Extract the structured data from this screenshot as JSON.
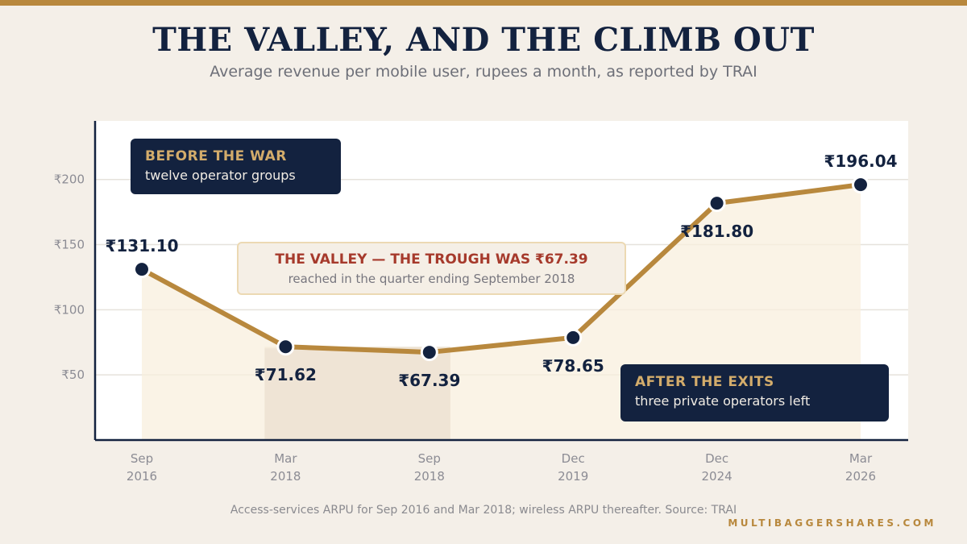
{
  "title": "THE VALLEY, AND THE CLIMB OUT",
  "subtitle": "Average revenue per mobile user, rupees a month, as reported by TRAI",
  "footnote": "Access-services ARPU for Sep 2016 and Mar 2018; wireless ARPU thereafter. Source: TRAI",
  "brand": "MULTIBAGGERSHARES.COM",
  "annotations": {
    "before": {
      "heading": "BEFORE THE WAR",
      "text": "twelve operator groups"
    },
    "valley": {
      "heading": "THE VALLEY — THE TROUGH WAS ₹67.39",
      "text": "reached in the quarter ending September 2018"
    },
    "after": {
      "heading": "AFTER THE EXITS",
      "text": "three private operators left"
    }
  },
  "colors": {
    "line": "#b8883d",
    "point": "#13223f",
    "area": "#f8efde",
    "valley_band": "#ede3d3",
    "background": "#f4efe8",
    "plot_background": "#ffffff"
  },
  "chart_data": {
    "type": "line",
    "categories": [
      [
        "Sep",
        "2016"
      ],
      [
        "Mar",
        "2018"
      ],
      [
        "Sep",
        "2018"
      ],
      [
        "Dec",
        "2019"
      ],
      [
        "Dec",
        "2024"
      ],
      [
        "Mar",
        "2026"
      ]
    ],
    "values": [
      131.1,
      71.62,
      67.39,
      78.65,
      181.8,
      196.04
    ],
    "data_labels": [
      "₹131.10",
      "₹71.62",
      "₹67.39",
      "₹78.65",
      "₹181.80",
      "₹196.04"
    ],
    "label_position": [
      "above",
      "below",
      "below",
      "below",
      "below",
      "above"
    ],
    "y_ticks": [
      50,
      100,
      150,
      200
    ],
    "y_tick_labels": [
      "₹50",
      "₹100",
      "₹150",
      "₹200"
    ],
    "ylim": [
      0,
      245
    ],
    "grid": true,
    "area_fill": true,
    "highlight_band": {
      "from_category": 1,
      "to_category": 2
    },
    "xlabel": "",
    "ylabel": ""
  }
}
